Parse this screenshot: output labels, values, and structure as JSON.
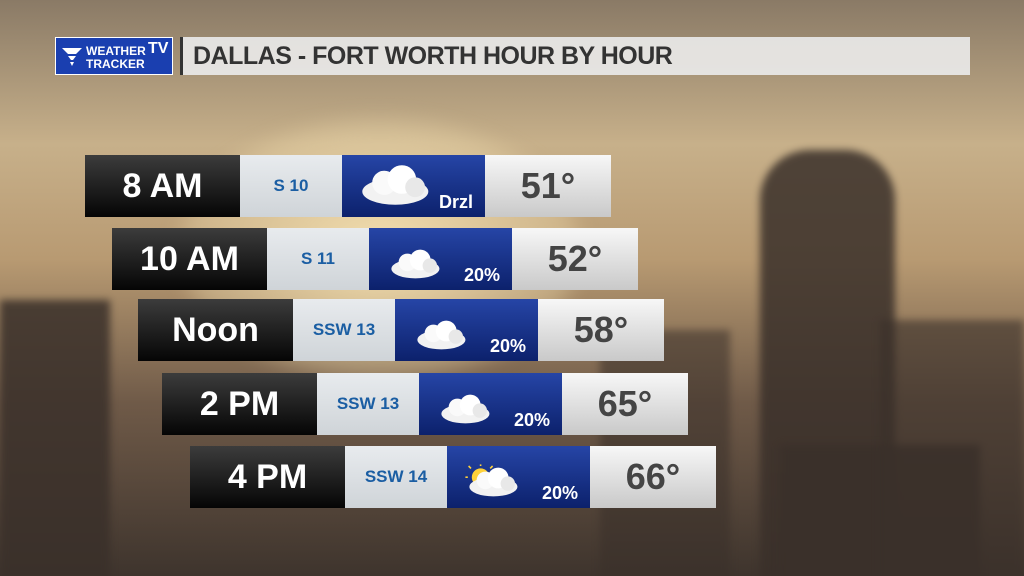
{
  "header": {
    "logo": {
      "line1": "WEATHER",
      "badge": "TV",
      "line2": "TRACKER"
    },
    "title": "DALLAS - FORT WORTH HOUR BY HOUR"
  },
  "rows": [
    {
      "time": "8 AM",
      "wind": "S 10",
      "condition": "Drzl",
      "temp": "51°"
    },
    {
      "time": "10 AM",
      "wind": "S 11",
      "condition": "20%",
      "temp": "52°"
    },
    {
      "time": "Noon",
      "wind": "SSW 13",
      "condition": "20%",
      "temp": "58°"
    },
    {
      "time": "2 PM",
      "wind": "SSW 13",
      "condition": "20%",
      "temp": "65°"
    },
    {
      "time": "4 PM",
      "wind": "SSW 14",
      "condition": "20%",
      "temp": "66°"
    }
  ]
}
